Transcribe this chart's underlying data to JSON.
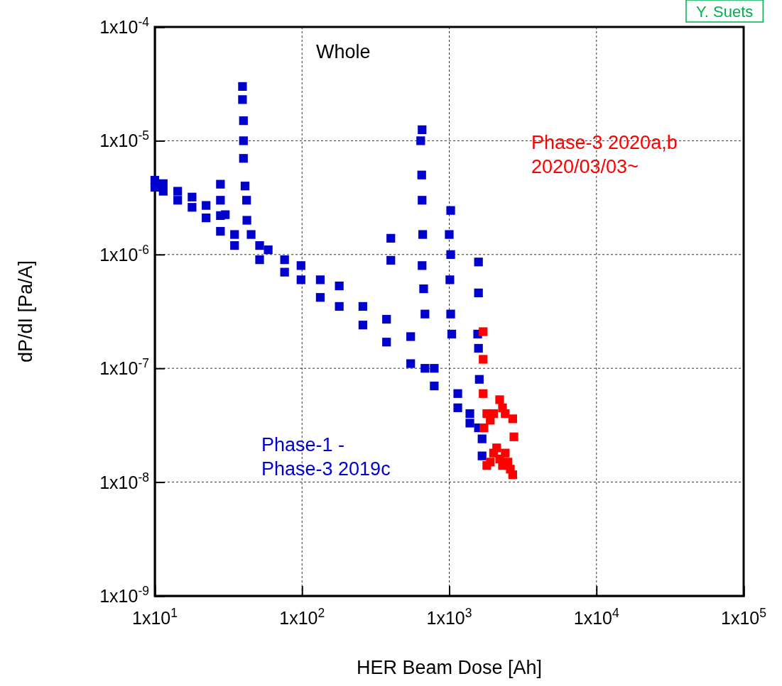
{
  "chart_data": {
    "type": "scatter",
    "xlabel": "HER Beam Dose [Ah]",
    "ylabel": "dP/dI [Pa/A]",
    "log": "xy",
    "grid": true,
    "marker": "square",
    "xlim": [
      10,
      100000
    ],
    "ylim": [
      1e-09,
      0.0001
    ],
    "xticks": [
      {
        "value": 10,
        "label": "1x10$^{1}$"
      },
      {
        "value": 100,
        "label": "1x10$^{2}$"
      },
      {
        "value": 1000,
        "label": "1x10$^{3}$"
      },
      {
        "value": 10000,
        "label": "1x10$^{4}$"
      },
      {
        "value": 100000,
        "label": "1x10$^{5}$"
      }
    ],
    "yticks": [
      {
        "value": 1e-09,
        "label": "1x10$^{-9}$"
      },
      {
        "value": 1e-08,
        "label": "1x10$^{-8}$"
      },
      {
        "value": 1e-07,
        "label": "1x10$^{-7}$"
      },
      {
        "value": 1e-06,
        "label": "1x10$^{-6}$"
      },
      {
        "value": 1e-05,
        "label": "1x10$^{-5}$"
      },
      {
        "value": 0.0001,
        "label": "1x10$^{-4}$"
      }
    ],
    "annotations": [
      "Whole",
      "Y. Suets"
    ],
    "series": [
      {
        "name": "Phase-1 - Phase-3 2019c",
        "color": "#0000cc",
        "x": [
          10,
          10,
          11.4,
          11.4,
          14.3,
          14.3,
          17.9,
          17.9,
          22.3,
          22.3,
          27.9,
          27.9,
          27.9,
          27.9,
          30.1,
          34.8,
          34.8,
          39.4,
          39.4,
          40,
          40,
          40,
          41,
          42,
          42.2,
          45.1,
          51.5,
          51.5,
          58.9,
          76.1,
          76.1,
          98.4,
          98.4,
          133,
          133,
          179,
          179,
          259,
          259,
          375,
          375,
          401,
          401,
          547,
          547,
          640,
          650,
          654,
          654,
          654,
          660,
          670,
          684,
          684,
          791,
          791,
          1000,
          1010,
          1023,
          1023,
          1023,
          1040,
          1143,
          1143,
          1381,
          1381,
          1560,
          1580,
          1580,
          1580,
          1580,
          1600,
          1671,
          1671
        ],
        "values": [
          4.5e-06,
          3.9e-06,
          4.2e-06,
          3.6e-06,
          3.6e-06,
          3e-06,
          3.2e-06,
          2.6e-06,
          2.7e-06,
          2.1e-06,
          2.2e-06,
          1.6e-06,
          4.15e-06,
          3e-06,
          2.24e-06,
          1.5e-06,
          1.2e-06,
          3e-05,
          2.3e-05,
          1.5e-05,
          1e-05,
          7e-06,
          4e-06,
          3e-06,
          2e-06,
          1.5e-06,
          1.2e-06,
          9e-07,
          1.1e-06,
          9e-07,
          7e-07,
          8e-07,
          6e-07,
          6e-07,
          4.2e-07,
          5.3e-07,
          3.5e-07,
          3.5e-07,
          2.4e-07,
          2.7e-07,
          1.7e-07,
          1.39e-06,
          8.9e-07,
          1.9e-07,
          1.1e-07,
          1e-05,
          5e-06,
          1.25e-05,
          3e-06,
          8e-07,
          1.5e-06,
          5e-07,
          3e-07,
          1e-07,
          7e-08,
          1e-07,
          1.5e-06,
          6e-07,
          2.44e-06,
          1e-06,
          3e-07,
          2e-07,
          6e-08,
          4.5e-08,
          4e-08,
          3.3e-08,
          2e-07,
          8.6e-07,
          4.6e-07,
          1.5e-07,
          3e-08,
          8e-08,
          2.4e-08,
          1.7e-08
        ]
      },
      {
        "name": "Phase-3 2020a,b 2020/03/03~",
        "color": "#ff0000",
        "x": [
          1700,
          1700,
          1700,
          1720,
          1800,
          1800,
          1900,
          1900,
          2000,
          2000,
          2100,
          2200,
          2200,
          2300,
          2300,
          2400,
          2400,
          2500,
          2600,
          2700,
          2700,
          2750
        ],
        "values": [
          2.1e-07,
          1.2e-07,
          6e-08,
          3e-08,
          4e-08,
          1.4e-08,
          3.5e-08,
          1.5e-08,
          4e-08,
          1.8e-08,
          2e-08,
          5.3e-08,
          1.6e-08,
          4.5e-08,
          1.4e-08,
          4e-08,
          1.8e-08,
          1.5e-08,
          1.3e-08,
          3.6e-08,
          1.16e-08,
          2.5e-08
        ]
      }
    ]
  }
}
